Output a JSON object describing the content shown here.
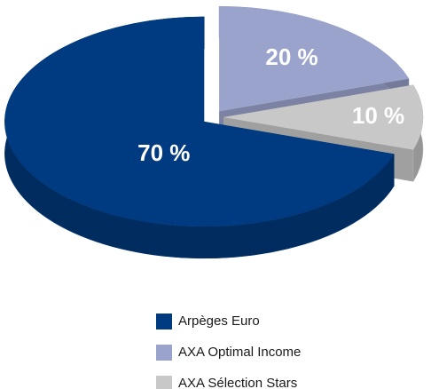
{
  "chart_data": {
    "type": "pie",
    "categories": [
      "Arpèges Euro",
      "AXA Optimal Income",
      "AXA Sélection Stars"
    ],
    "values": [
      70,
      20,
      10
    ],
    "value_labels": [
      "70 %",
      "20 %",
      "10 %"
    ],
    "colors": [
      "#003a80",
      "#9aa3cc",
      "#c8c8c8"
    ]
  }
}
